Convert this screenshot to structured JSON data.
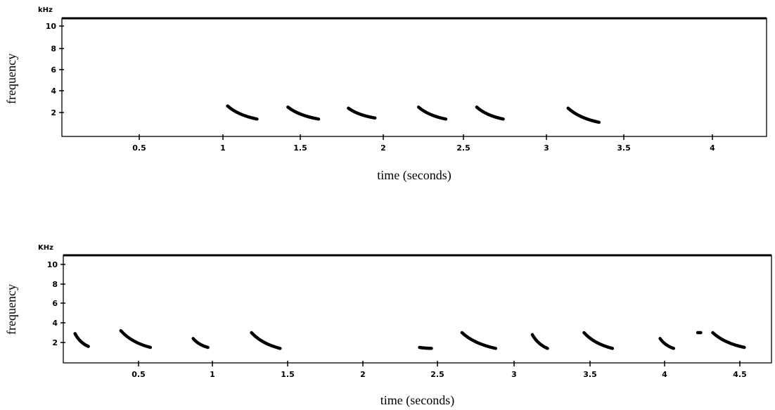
{
  "chart_data": [
    {
      "type": "scatter",
      "title": "",
      "xlabel": "time (seconds)",
      "ylabel": "frequency",
      "y_unit": "kHz",
      "xlim": [
        0,
        4.3
      ],
      "ylim": [
        0,
        11
      ],
      "xticks": [
        0.5,
        1,
        1.5,
        2,
        2.5,
        3,
        3.5,
        4
      ],
      "xtick_labels": [
        "0.5",
        "1",
        "1.5",
        "2",
        "2.5",
        "3",
        "3.5",
        "4"
      ],
      "yticks": [
        2,
        4,
        6,
        8,
        10
      ],
      "ytick_labels": [
        "2",
        "4",
        "6",
        "8",
        "10"
      ],
      "grid": false,
      "notes": [
        {
          "t_start": 1.03,
          "t_end": 1.22,
          "f_start": 2.6,
          "f_end": 1.4
        },
        {
          "t_start": 1.42,
          "t_end": 1.61,
          "f_start": 2.5,
          "f_end": 1.4
        },
        {
          "t_start": 1.79,
          "t_end": 1.95,
          "f_start": 2.4,
          "f_end": 1.5
        },
        {
          "t_start": 2.22,
          "t_end": 2.39,
          "f_start": 2.5,
          "f_end": 1.4
        },
        {
          "t_start": 2.58,
          "t_end": 2.74,
          "f_start": 2.5,
          "f_end": 1.4
        },
        {
          "t_start": 3.14,
          "t_end": 3.34,
          "f_start": 2.4,
          "f_end": 1.1
        }
      ]
    },
    {
      "type": "scatter",
      "title": "",
      "xlabel": "time (seconds)",
      "ylabel": "frequency",
      "y_unit": "KHz",
      "xlim": [
        0,
        4.8
      ],
      "ylim": [
        0,
        11
      ],
      "xticks": [
        0.5,
        1,
        1.5,
        2,
        2.5,
        3,
        3.5,
        4,
        4.5
      ],
      "xtick_labels": [
        "0.5",
        "1",
        "1.5",
        "2",
        "2.5",
        "3",
        "3.5",
        "4",
        "4.5"
      ],
      "yticks": [
        2,
        4,
        6,
        8,
        10
      ],
      "ytick_labels": [
        "2",
        "4",
        "6",
        "8",
        "10"
      ],
      "grid": false,
      "notes": [
        {
          "t_start": 0.07,
          "t_end": 0.16,
          "f_start": 2.9,
          "f_end": 1.6
        },
        {
          "t_start": 0.38,
          "t_end": 0.58,
          "f_start": 3.2,
          "f_end": 1.5
        },
        {
          "t_start": 0.87,
          "t_end": 0.97,
          "f_start": 2.4,
          "f_end": 1.5
        },
        {
          "t_start": 1.26,
          "t_end": 1.45,
          "f_start": 3.0,
          "f_end": 1.4
        },
        {
          "t_start": 2.38,
          "t_end": 2.46,
          "f_start": 1.5,
          "f_end": 1.4
        },
        {
          "t_start": 2.66,
          "t_end": 2.88,
          "f_start": 3.0,
          "f_end": 1.4
        },
        {
          "t_start": 3.12,
          "t_end": 3.22,
          "f_start": 2.8,
          "f_end": 1.4
        },
        {
          "t_start": 3.46,
          "t_end": 3.65,
          "f_start": 3.0,
          "f_end": 1.4
        },
        {
          "t_start": 3.97,
          "t_end": 4.06,
          "f_start": 2.4,
          "f_end": 1.4
        },
        {
          "t_start": 4.22,
          "t_end": 4.24,
          "f_start": 3.0,
          "f_end": 3.0
        },
        {
          "t_start": 4.32,
          "t_end": 4.53,
          "f_start": 3.0,
          "f_end": 1.5
        }
      ]
    }
  ]
}
